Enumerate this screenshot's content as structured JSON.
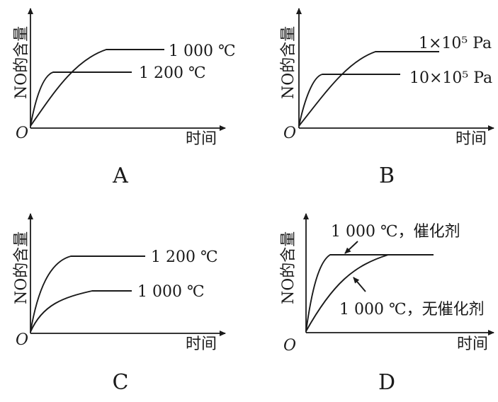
{
  "panels": [
    {
      "id": "A",
      "panel_label": "A",
      "ylabel": "NO的含量",
      "xlabel": "时间",
      "origin": "O",
      "curve_labels": [
        "1 000 ℃",
        "1 200 ℃"
      ]
    },
    {
      "id": "B",
      "panel_label": "B",
      "ylabel": "NO的含量",
      "xlabel": "时间",
      "origin": "O",
      "curve_labels": [
        "1×10⁵ Pa",
        "10×10⁵ Pa"
      ]
    },
    {
      "id": "C",
      "panel_label": "C",
      "ylabel": "NO的含量",
      "xlabel": "时间",
      "origin": "O",
      "curve_labels": [
        "1 200 ℃",
        "1 000 ℃"
      ]
    },
    {
      "id": "D",
      "panel_label": "D",
      "ylabel": "NO的含量",
      "xlabel": "时间",
      "origin": "O",
      "curve_labels": [
        "1 000 ℃，催化剂",
        "1 000 ℃，无催化剂"
      ]
    }
  ]
}
